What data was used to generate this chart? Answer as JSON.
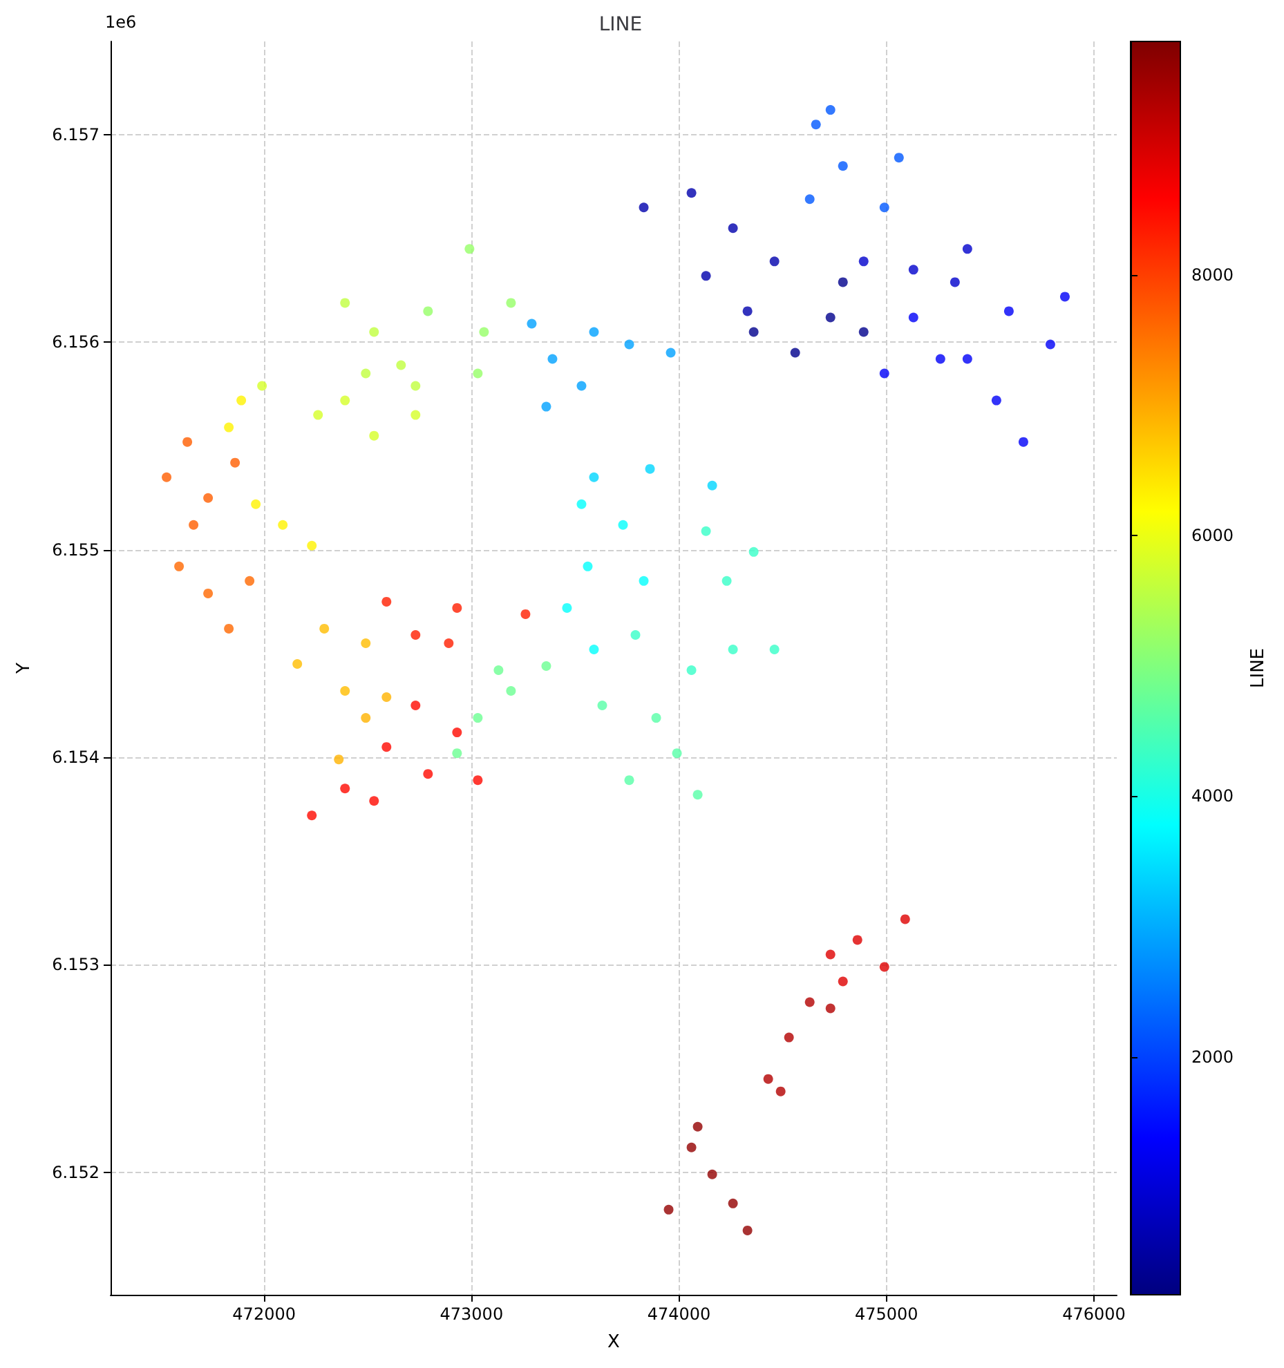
{
  "chart_data": {
    "type": "scatter",
    "title": "LINE",
    "xlabel": "X",
    "ylabel": "Y",
    "clabel": "LINE",
    "annotations": [
      "1e6"
    ],
    "x": [
      473950,
      474060,
      474160,
      474260,
      474330,
      474090,
      474430,
      474530,
      474630,
      474730,
      474490,
      474730,
      474860,
      474990,
      475090,
      474790,
      472230,
      472390,
      472590,
      472730,
      472930,
      473030,
      472530,
      472790,
      472590,
      472930,
      473260,
      472730,
      472890,
      471590,
      471730,
      471830,
      471930,
      471530,
      471630,
      471730,
      471660,
      471860,
      472160,
      472290,
      472390,
      472490,
      472360,
      472490,
      472590,
      471960,
      472090,
      472230,
      471830,
      471890,
      471990,
      472260,
      472530,
      472730,
      472390,
      472390,
      472530,
      472660,
      472730,
      472490,
      472790,
      472990,
      473060,
      473190,
      473030,
      472930,
      473030,
      473190,
      473130,
      473360,
      473630,
      473760,
      473890,
      473990,
      474090,
      473790,
      474060,
      474260,
      474460,
      474230,
      474360,
      474130,
      473530,
      473560,
      473590,
      473730,
      473830,
      473460,
      473590,
      473860,
      474160,
      473290,
      473390,
      473360,
      473590,
      473760,
      473960,
      473530,
      474630,
      474790,
      474990,
      475060,
      474660,
      474730,
      475130,
      475390,
      475530,
      475660,
      475790,
      475860,
      475590,
      475260,
      474990,
      474890,
      475130,
      475330,
      475390,
      473830,
      474060,
      474260,
      474130,
      474330,
      474460,
      474360,
      474560,
      474730,
      474890,
      474790
    ],
    "values": [
      6.15182,
      6.15212,
      6.15199,
      6.15185,
      6.15172,
      6.15222,
      6.15245,
      6.15265,
      6.15282,
      6.15279,
      6.15239,
      6.15305,
      6.15312,
      6.15299,
      6.15322,
      6.15292,
      6.15372,
      6.15385,
      6.15405,
      6.15425,
      6.15412,
      6.15389,
      6.15379,
      6.15392,
      6.15475,
      6.15472,
      6.15469,
      6.15459,
      6.15455,
      6.15492,
      6.15479,
      6.15462,
      6.15485,
      6.15535,
      6.15552,
      6.15525,
      6.15512,
      6.15542,
      6.15445,
      6.15462,
      6.15432,
      6.15455,
      6.15399,
      6.15419,
      6.15429,
      6.15522,
      6.15512,
      6.15502,
      6.15559,
      6.15572,
      6.15579,
      6.15565,
      6.15555,
      6.15565,
      6.15572,
      6.15619,
      6.15605,
      6.15589,
      6.15579,
      6.15585,
      6.15615,
      6.15645,
      6.15605,
      6.15619,
      6.15585,
      6.15402,
      6.15419,
      6.15432,
      6.15442,
      6.15444,
      6.15425,
      6.15389,
      6.15419,
      6.15402,
      6.15382,
      6.15459,
      6.15442,
      6.15452,
      6.15452,
      6.15485,
      6.15499,
      6.15509,
      6.15522,
      6.15492,
      6.15452,
      6.15512,
      6.15485,
      6.15472,
      6.15535,
      6.15539,
      6.15531,
      6.15609,
      6.15592,
      6.15569,
      6.15605,
      6.15599,
      6.15595,
      6.15579,
      6.15669,
      6.15685,
      6.15665,
      6.15689,
      6.15705,
      6.15712,
      6.15612,
      6.15592,
      6.15572,
      6.15552,
      6.15599,
      6.15622,
      6.15615,
      6.15592,
      6.15585,
      6.15639,
      6.15635,
      6.15629,
      6.15645,
      6.15665,
      6.15672,
      6.15655,
      6.15632,
      6.15615,
      6.15639,
      6.15605,
      6.15595,
      6.15612,
      6.15605,
      6.15629
    ],
    "cvalues": [
      9600,
      9600,
      9600,
      9600,
      9600,
      9600,
      9300,
      9300,
      9300,
      9300,
      9300,
      8900,
      8900,
      8900,
      8900,
      8900,
      8500,
      8500,
      8500,
      8500,
      8500,
      8500,
      8500,
      8500,
      8300,
      8300,
      8300,
      8300,
      8300,
      7600,
      7600,
      7600,
      7600,
      7700,
      7700,
      7700,
      7700,
      7700,
      6800,
      6800,
      6800,
      6800,
      6900,
      6900,
      6900,
      6300,
      6300,
      6300,
      6300,
      6300,
      5800,
      5800,
      5800,
      5800,
      5800,
      5600,
      5600,
      5600,
      5600,
      5600,
      5200,
      5200,
      5200,
      5200,
      5200,
      4800,
      4800,
      4800,
      4800,
      4800,
      4600,
      4600,
      4600,
      4600,
      4600,
      4300,
      4300,
      4300,
      4300,
      4300,
      4300,
      4300,
      3800,
      3800,
      3800,
      3800,
      3800,
      3800,
      3400,
      3400,
      3400,
      2900,
      2900,
      2900,
      2900,
      2900,
      2900,
      2900,
      2200,
      2200,
      2200,
      2200,
      2200,
      2200,
      1300,
      1300,
      1300,
      1300,
      1300,
      1300,
      1300,
      1300,
      1300,
      900,
      900,
      900,
      900,
      600,
      600,
      600,
      600,
      600,
      600,
      300,
      300,
      300,
      300,
      300
    ],
    "xlim": [
      471260,
      476110
    ],
    "ylim": [
      6.15141,
      6.15745
    ],
    "xticks": [
      472000,
      473000,
      474000,
      475000,
      476000
    ],
    "yticks": [
      6.152,
      6.153,
      6.154,
      6.155,
      6.156,
      6.157
    ],
    "clim": [
      176,
      9790
    ],
    "cticks": [
      2000,
      4000,
      6000,
      8000
    ],
    "grid": true,
    "marker": "circle"
  }
}
